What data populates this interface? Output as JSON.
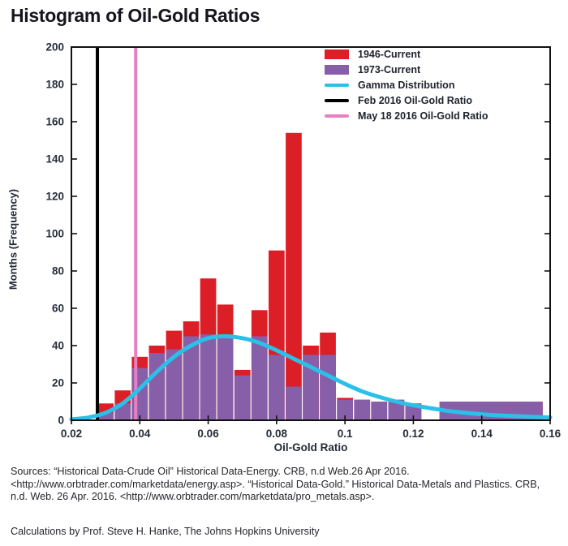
{
  "title": "Histogram of Oil-Gold Ratios",
  "chart_data": {
    "type": "bar",
    "subtype": "overlaid-histogram-with-fit-curve",
    "title": "Histogram of Oil-Gold Ratios",
    "xlabel": "Oil-Gold Ratio",
    "ylabel": "Months (Frequency)",
    "xlim": [
      0.02,
      0.16
    ],
    "ylim": [
      0,
      200
    ],
    "x_ticks": [
      {
        "v": 0.02,
        "label": "0.02"
      },
      {
        "v": 0.04,
        "label": "0.04"
      },
      {
        "v": 0.06,
        "label": "0.06"
      },
      {
        "v": 0.08,
        "label": "0.08"
      },
      {
        "v": 0.1,
        "label": "0.1"
      },
      {
        "v": 0.12,
        "label": "0.12"
      },
      {
        "v": 0.14,
        "label": "0.14"
      },
      {
        "v": 0.16,
        "label": "0.16"
      }
    ],
    "y_ticks": [
      0,
      20,
      40,
      60,
      80,
      100,
      120,
      140,
      160,
      180,
      200
    ],
    "grid": false,
    "legend_position": "top-right-inside",
    "series": [
      {
        "name": "1946-Current",
        "color": "#dc1f26",
        "bars": [
          [
            0.0275,
            0.0325,
            9
          ],
          [
            0.0325,
            0.0375,
            16
          ],
          [
            0.0375,
            0.0425,
            34
          ],
          [
            0.0425,
            0.0475,
            40
          ],
          [
            0.0475,
            0.0525,
            48
          ],
          [
            0.0525,
            0.0575,
            53
          ],
          [
            0.0575,
            0.0625,
            76
          ],
          [
            0.0625,
            0.0675,
            62
          ],
          [
            0.0675,
            0.0725,
            27
          ],
          [
            0.0725,
            0.0775,
            59
          ],
          [
            0.0775,
            0.0825,
            91
          ],
          [
            0.0825,
            0.0875,
            154
          ],
          [
            0.0875,
            0.0925,
            40
          ],
          [
            0.0925,
            0.0975,
            47
          ],
          [
            0.0975,
            0.1025,
            12
          ],
          [
            0.1025,
            0.1075,
            11
          ],
          [
            0.1075,
            0.1125,
            10
          ],
          [
            0.1125,
            0.1175,
            11
          ],
          [
            0.1175,
            0.1225,
            9
          ],
          [
            0.1275,
            0.158,
            10
          ]
        ]
      },
      {
        "name": "1973-Current",
        "color": "#875fa8",
        "bars": [
          [
            0.0275,
            0.0325,
            4
          ],
          [
            0.0325,
            0.0375,
            9
          ],
          [
            0.0375,
            0.0425,
            28
          ],
          [
            0.0425,
            0.0475,
            36
          ],
          [
            0.0475,
            0.0525,
            38
          ],
          [
            0.0525,
            0.0575,
            45
          ],
          [
            0.0575,
            0.0625,
            46
          ],
          [
            0.0625,
            0.0675,
            46
          ],
          [
            0.0675,
            0.0725,
            24
          ],
          [
            0.0725,
            0.0775,
            45
          ],
          [
            0.0775,
            0.0825,
            35
          ],
          [
            0.0825,
            0.0875,
            18
          ],
          [
            0.0875,
            0.0925,
            35
          ],
          [
            0.0925,
            0.0975,
            35
          ],
          [
            0.0975,
            0.1025,
            11
          ],
          [
            0.1025,
            0.1075,
            11
          ],
          [
            0.1075,
            0.1125,
            10
          ],
          [
            0.1125,
            0.1175,
            11
          ],
          [
            0.1175,
            0.1225,
            9
          ],
          [
            0.1275,
            0.158,
            10
          ]
        ]
      }
    ],
    "curve": {
      "name": "Gamma Distribution",
      "color": "#2bc0e8",
      "points": [
        [
          0.02,
          0.5
        ],
        [
          0.025,
          1.5
        ],
        [
          0.03,
          4
        ],
        [
          0.035,
          9
        ],
        [
          0.04,
          17
        ],
        [
          0.045,
          26
        ],
        [
          0.05,
          34
        ],
        [
          0.055,
          40
        ],
        [
          0.06,
          44
        ],
        [
          0.065,
          45
        ],
        [
          0.07,
          44
        ],
        [
          0.075,
          41.5
        ],
        [
          0.08,
          37.5
        ],
        [
          0.085,
          33
        ],
        [
          0.09,
          28.5
        ],
        [
          0.095,
          24
        ],
        [
          0.1,
          19.5
        ],
        [
          0.105,
          15.5
        ],
        [
          0.11,
          12.5
        ],
        [
          0.115,
          10
        ],
        [
          0.12,
          8
        ],
        [
          0.125,
          6.5
        ],
        [
          0.13,
          5
        ],
        [
          0.135,
          4
        ],
        [
          0.14,
          3.2
        ],
        [
          0.145,
          2.6
        ],
        [
          0.15,
          2.2
        ],
        [
          0.155,
          1.8
        ],
        [
          0.16,
          1.5
        ]
      ]
    },
    "vlines": [
      {
        "name": "Feb 2016 Oil-Gold Ratio",
        "x": 0.0276,
        "color": "#000000"
      },
      {
        "name": "May 18 2016 Oil-Gold Ratio",
        "x": 0.0388,
        "color": "#e87fc2"
      }
    ]
  },
  "legend": {
    "items": [
      {
        "label": "1946-Current",
        "swatch": "rect",
        "color": "#dc1f26"
      },
      {
        "label": "1973-Current",
        "swatch": "rect",
        "color": "#875fa8"
      },
      {
        "label": "Gamma Distribution",
        "swatch": "line",
        "color": "#2bc0e8"
      },
      {
        "label": "Feb 2016 Oil-Gold Ratio",
        "swatch": "line",
        "color": "#000000"
      },
      {
        "label": "May 18 2016 Oil-Gold Ratio",
        "swatch": "line",
        "color": "#e87fc2"
      }
    ]
  },
  "footer": {
    "sources": "Sources: “Historical Data-Crude Oil” Historical Data-Energy. CRB, n.d Web.26 Apr 2016. <http://www.orbtrader.com/marketdata/energy.asp>. “Historical Data-Gold.” Historical Data-Metals and Plastics. CRB, n.d. Web. 26 Apr. 2016. <http://www.orbtrader.com/marketdata/pro_metals.asp>.",
    "calculations": "Calculations by Prof. Steve H. Hanke, The Johns Hopkins University"
  },
  "colors": {
    "axis": "#111111",
    "tick_label": "#262c38",
    "title": "#15151e"
  }
}
